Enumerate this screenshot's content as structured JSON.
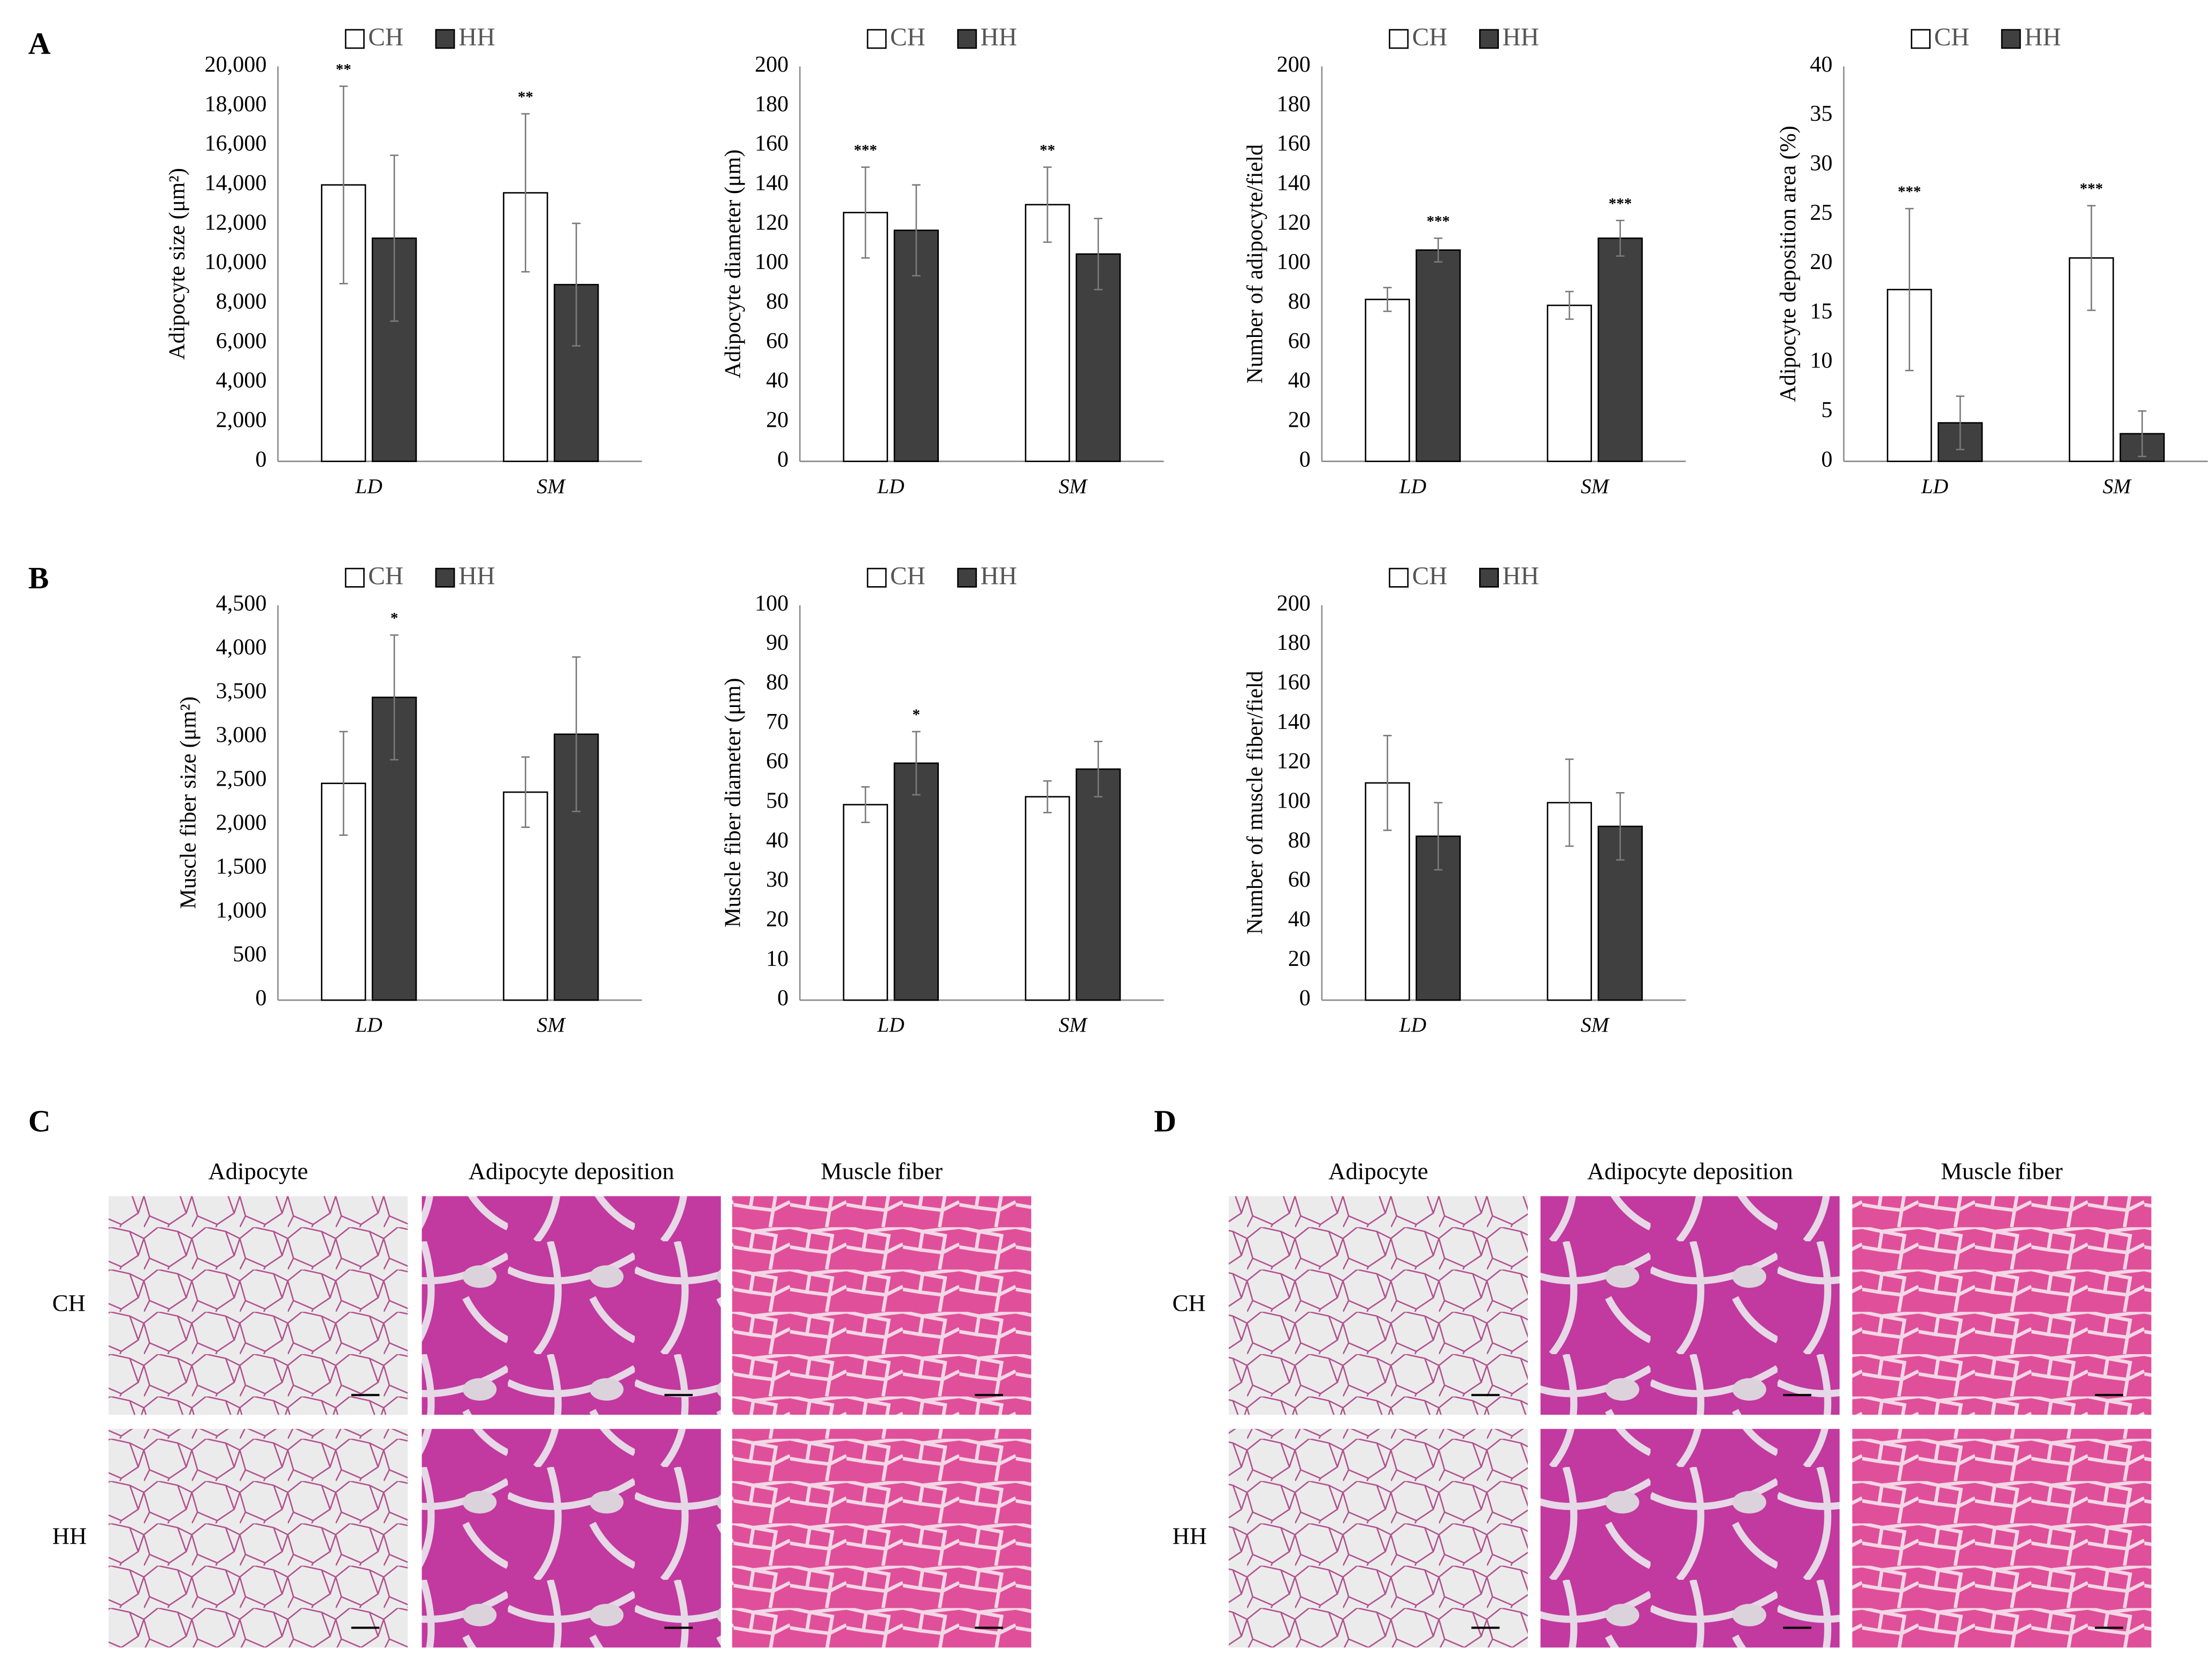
{
  "panel_labels": [
    "A",
    "B"
  ],
  "chart_data": [
    {
      "type": "bar",
      "ylabel": "Adipocyte size (μm²)",
      "categories": [
        "LD",
        "SM"
      ],
      "ylim": [
        0,
        20000
      ],
      "yticks": [
        0,
        {
          "value": 2000,
          "label": "2,000"
        },
        {
          "value": 4000,
          "label": "4,000"
        },
        {
          "value": 6000,
          "label": "6,000"
        },
        {
          "value": 8000,
          "label": "8,000"
        },
        {
          "value": 10000,
          "label": "10,000"
        },
        {
          "value": 12000,
          "label": "12,000"
        },
        {
          "value": 14000,
          "label": "14,000"
        },
        {
          "value": 16000,
          "label": "16,000"
        },
        {
          "value": 18000,
          "label": "18,000"
        },
        {
          "value": 20000,
          "label": "20,000"
        }
      ],
      "series": [
        {
          "name": "CH",
          "color": "#ffffff",
          "values": [
            14000,
            13600
          ],
          "errors": [
            5000,
            4000
          ],
          "stars": [
            "**",
            "**"
          ]
        },
        {
          "name": "HH",
          "color": "#404040",
          "values": [
            11300,
            8950
          ],
          "errors": [
            4200,
            3100
          ],
          "stars": [
            null,
            null
          ]
        }
      ]
    },
    {
      "type": "bar",
      "ylabel": "Adipocyte diameter (μm)",
      "categories": [
        "LD",
        "SM"
      ],
      "ylim": [
        0,
        200
      ],
      "yticks": [
        0,
        20,
        40,
        60,
        80,
        100,
        120,
        140,
        160,
        180,
        200
      ],
      "series": [
        {
          "name": "CH",
          "color": "#ffffff",
          "values": [
            126,
            130
          ],
          "errors": [
            23,
            19
          ],
          "stars": [
            "***",
            "**"
          ]
        },
        {
          "name": "HH",
          "color": "#404040",
          "values": [
            117,
            105
          ],
          "errors": [
            23,
            18
          ],
          "stars": [
            null,
            null
          ]
        }
      ]
    },
    {
      "type": "bar",
      "ylabel": "Number of adipocyte/field",
      "categories": [
        "LD",
        "SM"
      ],
      "ylim": [
        0,
        200
      ],
      "yticks": [
        0,
        20,
        40,
        60,
        80,
        100,
        120,
        140,
        160,
        180,
        200
      ],
      "series": [
        {
          "name": "CH",
          "color": "#ffffff",
          "values": [
            82,
            79
          ],
          "errors": [
            6,
            7
          ],
          "stars": [
            null,
            null
          ]
        },
        {
          "name": "HH",
          "color": "#404040",
          "values": [
            107,
            113
          ],
          "errors": [
            6,
            9
          ],
          "stars": [
            "***",
            "***"
          ]
        }
      ]
    },
    {
      "type": "bar",
      "ylabel": "Adipocyte deposition area (%)",
      "categories": [
        "LD",
        "SM"
      ],
      "ylim": [
        0,
        40
      ],
      "yticks": [
        0,
        5,
        10,
        15,
        20,
        25,
        30,
        35,
        40
      ],
      "series": [
        {
          "name": "CH",
          "color": "#ffffff",
          "values": [
            17.4,
            20.6
          ],
          "errors": [
            8.2,
            5.3
          ],
          "stars": [
            "***",
            "***"
          ]
        },
        {
          "name": "HH",
          "color": "#404040",
          "values": [
            3.9,
            2.8
          ],
          "errors": [
            2.7,
            2.3
          ],
          "stars": [
            null,
            null
          ]
        }
      ]
    },
    {
      "type": "bar",
      "ylabel": "Muscle fiber size (μm²)",
      "categories": [
        "LD",
        "SM"
      ],
      "ylim": [
        0,
        4500
      ],
      "yticks": [
        0,
        500,
        {
          "value": 1000,
          "label": "1,000"
        },
        {
          "value": 1500,
          "label": "1,500"
        },
        {
          "value": 2000,
          "label": "2,000"
        },
        {
          "value": 2500,
          "label": "2,500"
        },
        {
          "value": 3000,
          "label": "3,000"
        },
        {
          "value": 3500,
          "label": "3,500"
        },
        {
          "value": 4000,
          "label": "4,000"
        },
        {
          "value": 4500,
          "label": "4,500"
        }
      ],
      "series": [
        {
          "name": "CH",
          "color": "#ffffff",
          "values": [
            2470,
            2370
          ],
          "errors": [
            590,
            400
          ],
          "stars": [
            null,
            null
          ]
        },
        {
          "name": "HH",
          "color": "#404040",
          "values": [
            3450,
            3030
          ],
          "errors": [
            710,
            880
          ],
          "stars": [
            "*",
            null
          ]
        }
      ]
    },
    {
      "type": "bar",
      "ylabel": "Muscle fiber diameter (μm)",
      "categories": [
        "LD",
        "SM"
      ],
      "ylim": [
        0,
        100
      ],
      "yticks": [
        0,
        10,
        20,
        30,
        40,
        50,
        60,
        70,
        80,
        90,
        100
      ],
      "series": [
        {
          "name": "CH",
          "color": "#ffffff",
          "values": [
            49.5,
            51.5
          ],
          "errors": [
            4.5,
            4
          ],
          "stars": [
            null,
            null
          ]
        },
        {
          "name": "HH",
          "color": "#404040",
          "values": [
            60,
            58.5
          ],
          "errors": [
            8,
            7
          ],
          "stars": [
            "*",
            null
          ]
        }
      ]
    },
    {
      "type": "bar",
      "ylabel": "Number of muscle fiber/field",
      "categories": [
        "LD",
        "SM"
      ],
      "ylim": [
        0,
        200
      ],
      "yticks": [
        0,
        20,
        40,
        60,
        80,
        100,
        120,
        140,
        160,
        180,
        200
      ],
      "series": [
        {
          "name": "CH",
          "color": "#ffffff",
          "values": [
            110,
            100
          ],
          "errors": [
            24,
            22
          ],
          "stars": [
            null,
            null
          ]
        },
        {
          "name": "HH",
          "color": "#404040",
          "values": [
            83,
            88
          ],
          "errors": [
            17,
            17
          ],
          "stars": [
            null,
            null
          ]
        }
      ]
    }
  ],
  "micrographs": [
    {
      "label": "C",
      "columns": [
        "Adipocyte",
        "Adipocyte deposition",
        "Muscle fiber"
      ],
      "rows": [
        "CH",
        "HH"
      ]
    },
    {
      "label": "D",
      "columns": [
        "Adipocyte",
        "Adipocyte deposition",
        "Muscle fiber"
      ],
      "rows": [
        "CH",
        "HH"
      ]
    }
  ]
}
